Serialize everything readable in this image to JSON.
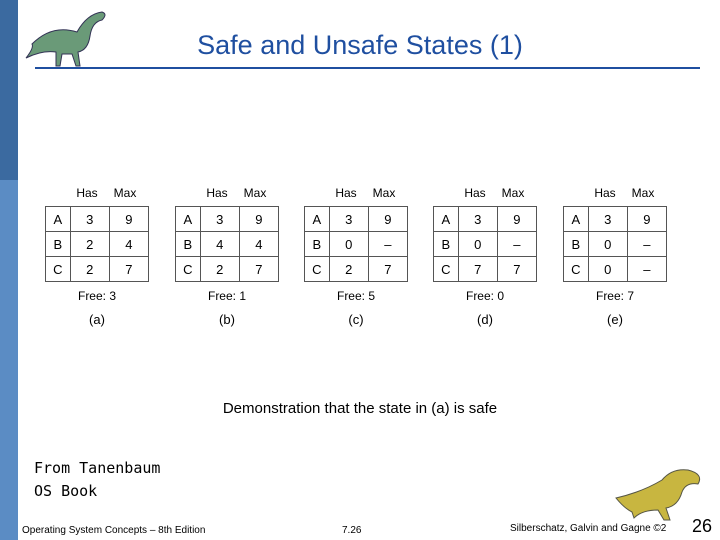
{
  "title": "Safe and Unsafe States (1)",
  "tables": [
    {
      "header": [
        "Has",
        "Max"
      ],
      "rows": [
        [
          "A",
          "3",
          "9"
        ],
        [
          "B",
          "2",
          "4"
        ],
        [
          "C",
          "2",
          "7"
        ]
      ],
      "free": "Free: 3",
      "label": "(a)"
    },
    {
      "header": [
        "Has",
        "Max"
      ],
      "rows": [
        [
          "A",
          "3",
          "9"
        ],
        [
          "B",
          "4",
          "4"
        ],
        [
          "C",
          "2",
          "7"
        ]
      ],
      "free": "Free: 1",
      "label": "(b)"
    },
    {
      "header": [
        "Has",
        "Max"
      ],
      "rows": [
        [
          "A",
          "3",
          "9"
        ],
        [
          "B",
          "0",
          "–"
        ],
        [
          "C",
          "2",
          "7"
        ]
      ],
      "free": "Free: 5",
      "label": "(c)"
    },
    {
      "header": [
        "Has",
        "Max"
      ],
      "rows": [
        [
          "A",
          "3",
          "9"
        ],
        [
          "B",
          "0",
          "–"
        ],
        [
          "C",
          "7",
          "7"
        ]
      ],
      "free": "Free: 0",
      "label": "(d)"
    },
    {
      "header": [
        "Has",
        "Max"
      ],
      "rows": [
        [
          "A",
          "3",
          "9"
        ],
        [
          "B",
          "0",
          "–"
        ],
        [
          "C",
          "0",
          "–"
        ]
      ],
      "free": "Free: 7",
      "label": "(e)"
    }
  ],
  "caption": "Demonstration that the state in (a) is safe",
  "source": [
    "From Tanenbaum",
    "OS Book"
  ],
  "footer": {
    "left": "Operating System Concepts – 8th Edition",
    "center": "7.26",
    "right": "Silberschatz, Galvin and Gagne ©2",
    "page": "26"
  }
}
